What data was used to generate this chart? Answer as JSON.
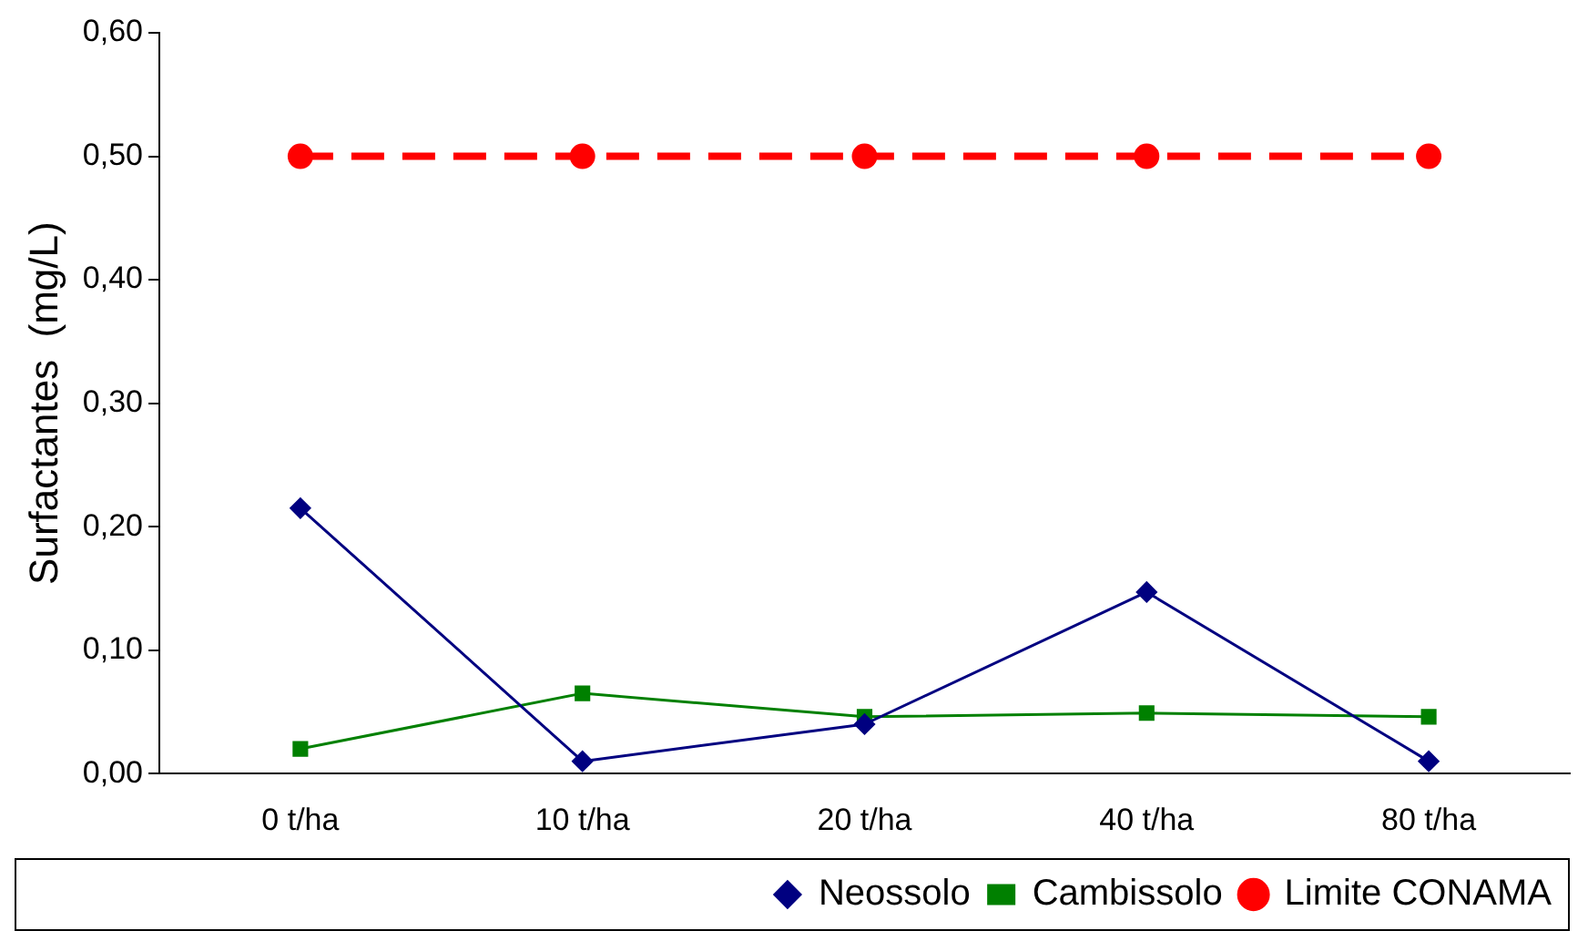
{
  "chart_data": {
    "type": "line",
    "categories": [
      "0 t/ha",
      "10 t/ha",
      "20 t/ha",
      "40 t/ha",
      "80 t/ha"
    ],
    "ylabel": "Surfactantes  (mg/L)",
    "ylim": [
      0,
      0.6
    ],
    "yticks": [
      {
        "value": 0,
        "label": "0,00"
      },
      {
        "value": 0.1,
        "label": "0,10"
      },
      {
        "value": 0.2,
        "label": "0,20"
      },
      {
        "value": 0.3,
        "label": "0,30"
      },
      {
        "value": 0.4,
        "label": "0,40"
      },
      {
        "value": 0.5,
        "label": "0,50"
      },
      {
        "value": 0.6,
        "label": "0,60"
      }
    ],
    "grid": false,
    "legend": "bottom",
    "series": [
      {
        "name": "Neossolo",
        "color": "#000080",
        "marker": "diamond",
        "line_style": "solid",
        "values": [
          0.215,
          0.01,
          0.04,
          0.147,
          0.01
        ]
      },
      {
        "name": "Cambissolo",
        "color": "#008000",
        "marker": "square",
        "line_style": "solid",
        "values": [
          0.02,
          0.065,
          0.046,
          0.049,
          0.046
        ]
      },
      {
        "name": "Limite CONAMA",
        "color": "#ff0000",
        "marker": "circle",
        "line_style": "dashed",
        "values": [
          0.5,
          0.5,
          0.5,
          0.5,
          0.5
        ]
      }
    ]
  }
}
